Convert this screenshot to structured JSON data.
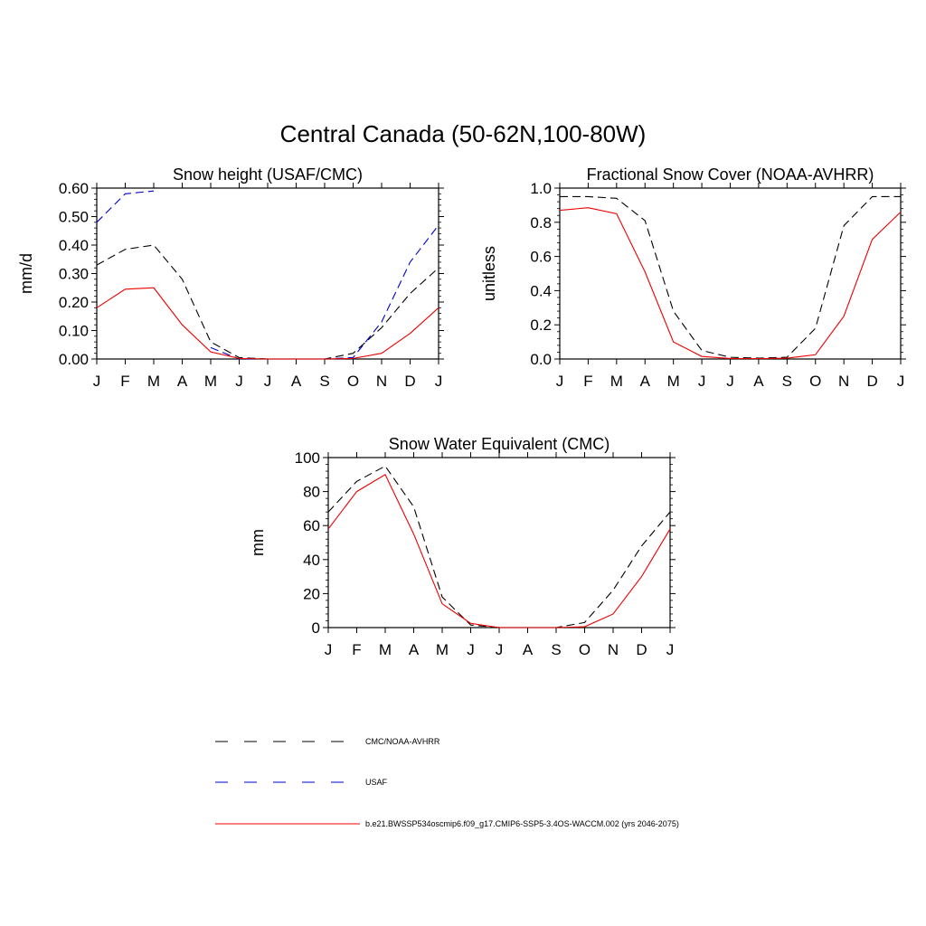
{
  "figure": {
    "title": "Central Canada (50-62N,100-80W)"
  },
  "colors": {
    "obs": "#000000",
    "usaf": "#0000cc",
    "model": "#ee0000"
  },
  "legend": {
    "position": "bottom",
    "items": [
      {
        "label": "CMC/NOAA-AVHRR",
        "color": "#000000",
        "style": "dashed"
      },
      {
        "label": "USAF",
        "color": "#0000cc",
        "style": "dashed"
      },
      {
        "label": "b.e21.BWSSP534oscmip6.f09_g17.CMIP6-SSP5-3.4OS-WACCM.002 (yrs 2046-2075)",
        "color": "#ee0000",
        "style": "solid"
      }
    ]
  },
  "chart_data": [
    {
      "type": "line",
      "title": "Snow height (USAF/CMC)",
      "xlabel": "",
      "ylabel": "mm/d",
      "categories": [
        "J",
        "F",
        "M",
        "A",
        "M",
        "J",
        "J",
        "A",
        "S",
        "O",
        "N",
        "D",
        "J"
      ],
      "ylim": [
        0,
        0.6
      ],
      "yticks": [
        "0.00",
        "0.10",
        "0.20",
        "0.30",
        "0.40",
        "0.50",
        "0.60"
      ],
      "grid": false,
      "series": [
        {
          "name": "CMC/NOAA-AVHRR",
          "style": "dashed",
          "color": "#000000",
          "values": [
            0.33,
            0.385,
            0.4,
            0.28,
            0.06,
            0.005,
            0.0,
            0.0,
            0.0,
            0.02,
            0.11,
            0.23,
            0.32
          ]
        },
        {
          "name": "USAF",
          "style": "dashed",
          "color": "#0000cc",
          "values": [
            0.48,
            0.58,
            0.59,
            null,
            0.04,
            0.0,
            0.0,
            0.0,
            0.0,
            0.005,
            0.13,
            0.34,
            0.47
          ]
        },
        {
          "name": "b.e21.BWSSP534oscmip6.f09_g17.CMIP6-SSP5-3.4OS-WACCM.002 (yrs 2046-2075)",
          "style": "solid",
          "color": "#ee0000",
          "values": [
            0.18,
            0.245,
            0.25,
            0.12,
            0.025,
            0.002,
            0.0,
            0.0,
            0.0,
            0.002,
            0.02,
            0.09,
            0.18
          ]
        }
      ]
    },
    {
      "type": "line",
      "title": "Fractional Snow Cover (NOAA-AVHRR)",
      "xlabel": "",
      "ylabel": "unitless",
      "categories": [
        "J",
        "F",
        "M",
        "A",
        "M",
        "J",
        "J",
        "A",
        "S",
        "O",
        "N",
        "D",
        "J"
      ],
      "ylim": [
        0,
        1.0
      ],
      "yticks": [
        "0.0",
        "0.2",
        "0.4",
        "0.6",
        "0.8",
        "1.0"
      ],
      "grid": false,
      "series": [
        {
          "name": "CMC/NOAA-AVHRR",
          "style": "dashed",
          "color": "#000000",
          "values": [
            0.95,
            0.95,
            0.94,
            0.81,
            0.28,
            0.05,
            0.01,
            0.005,
            0.01,
            0.18,
            0.78,
            0.95,
            0.95
          ]
        },
        {
          "name": "b.e21.BWSSP534oscmip6.f09_g17.CMIP6-SSP5-3.4OS-WACCM.002 (yrs 2046-2075)",
          "style": "solid",
          "color": "#ee0000",
          "values": [
            0.87,
            0.885,
            0.85,
            0.51,
            0.1,
            0.015,
            0.003,
            0.002,
            0.005,
            0.025,
            0.25,
            0.7,
            0.86
          ]
        }
      ]
    },
    {
      "type": "line",
      "title": "Snow Water Equivalent (CMC)",
      "xlabel": "",
      "ylabel": "mm",
      "categories": [
        "J",
        "F",
        "M",
        "A",
        "M",
        "J",
        "J",
        "A",
        "S",
        "O",
        "N",
        "D",
        "J"
      ],
      "ylim": [
        0,
        100
      ],
      "yticks": [
        "0",
        "20",
        "40",
        "60",
        "80",
        "100"
      ],
      "grid": false,
      "series": [
        {
          "name": "CMC/NOAA-AVHRR",
          "style": "dashed",
          "color": "#000000",
          "values": [
            68,
            86,
            95,
            71,
            18,
            1.5,
            0,
            0,
            0,
            3,
            22,
            48,
            68
          ]
        },
        {
          "name": "b.e21.BWSSP534oscmip6.f09_g17.CMIP6-SSP5-3.4OS-WACCM.002 (yrs 2046-2075)",
          "style": "solid",
          "color": "#ee0000",
          "values": [
            58,
            80,
            90,
            55,
            14,
            2.5,
            0,
            0,
            0,
            0.5,
            8,
            30,
            58
          ]
        }
      ]
    }
  ]
}
